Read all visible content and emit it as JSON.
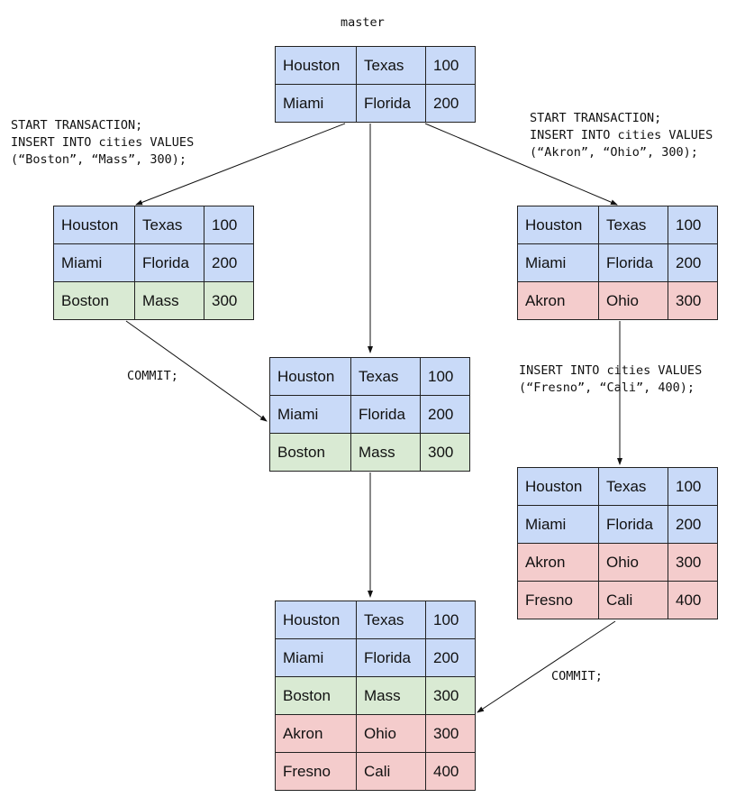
{
  "colors": {
    "original": "#c9daf8",
    "boston": "#d9ead3",
    "akron_branch": "#f4cccc"
  },
  "labels": {
    "master": "master",
    "left_tx": "START TRANSACTION;\nINSERT INTO cities VALUES\n(“Boston”, “Mass”, 300);",
    "right_tx": "START TRANSACTION;\nINSERT INTO cities VALUES\n(“Akron”, “Ohio”, 300);",
    "commit_left": "COMMIT;",
    "right_insert": "INSERT INTO cities VALUES\n(“Fresno”, “Cali”, 400);",
    "commit_right": "COMMIT;"
  },
  "tables": [
    {
      "id": "master",
      "rows": [
        [
          "Houston",
          "Texas",
          "100",
          "original"
        ],
        [
          "Miami",
          "Florida",
          "200",
          "original"
        ]
      ]
    },
    {
      "id": "left-branch",
      "rows": [
        [
          "Houston",
          "Texas",
          "100",
          "original"
        ],
        [
          "Miami",
          "Florida",
          "200",
          "original"
        ],
        [
          "Boston",
          "Mass",
          "300",
          "boston"
        ]
      ]
    },
    {
      "id": "master-after-commit",
      "rows": [
        [
          "Houston",
          "Texas",
          "100",
          "original"
        ],
        [
          "Miami",
          "Florida",
          "200",
          "original"
        ],
        [
          "Boston",
          "Mass",
          "300",
          "boston"
        ]
      ]
    },
    {
      "id": "right-branch",
      "rows": [
        [
          "Houston",
          "Texas",
          "100",
          "original"
        ],
        [
          "Miami",
          "Florida",
          "200",
          "original"
        ],
        [
          "Akron",
          "Ohio",
          "300",
          "akron_branch"
        ]
      ]
    },
    {
      "id": "right-branch-2",
      "rows": [
        [
          "Houston",
          "Texas",
          "100",
          "original"
        ],
        [
          "Miami",
          "Florida",
          "200",
          "original"
        ],
        [
          "Akron",
          "Ohio",
          "300",
          "akron_branch"
        ],
        [
          "Fresno",
          "Cali",
          "400",
          "akron_branch"
        ]
      ]
    },
    {
      "id": "master-final",
      "rows": [
        [
          "Houston",
          "Texas",
          "100",
          "original"
        ],
        [
          "Miami",
          "Florida",
          "200",
          "original"
        ],
        [
          "Boston",
          "Mass",
          "300",
          "boston"
        ],
        [
          "Akron",
          "Ohio",
          "300",
          "akron_branch"
        ],
        [
          "Fresno",
          "Cali",
          "400",
          "akron_branch"
        ]
      ]
    }
  ]
}
